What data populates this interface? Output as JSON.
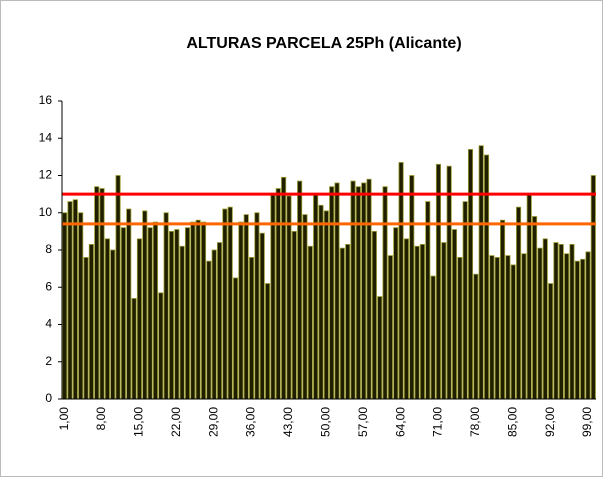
{
  "chart_data": {
    "type": "bar",
    "title": "ALTURAS PARCELA 25Ph (Alicante)",
    "categories": [
      "1,00",
      null,
      null,
      null,
      null,
      null,
      null,
      "8,00",
      null,
      null,
      null,
      null,
      null,
      null,
      "15,00",
      null,
      null,
      null,
      null,
      null,
      null,
      "22,00",
      null,
      null,
      null,
      null,
      null,
      null,
      "29,00",
      null,
      null,
      null,
      null,
      null,
      null,
      "36,00",
      null,
      null,
      null,
      null,
      null,
      null,
      "43,00",
      null,
      null,
      null,
      null,
      null,
      null,
      "50,00",
      null,
      null,
      null,
      null,
      null,
      null,
      "57,00",
      null,
      null,
      null,
      null,
      null,
      null,
      "64,00",
      null,
      null,
      null,
      null,
      null,
      null,
      "71,00",
      null,
      null,
      null,
      null,
      null,
      null,
      "78,00",
      null,
      null,
      null,
      null,
      null,
      null,
      "85,00",
      null,
      null,
      null,
      null,
      null,
      null,
      "92,00",
      null,
      null,
      null,
      null,
      null,
      null,
      "99,00",
      null
    ],
    "values": [
      10.0,
      10.6,
      10.7,
      10.0,
      7.6,
      8.3,
      11.4,
      11.3,
      8.6,
      8.0,
      12.0,
      9.2,
      10.2,
      5.4,
      8.6,
      10.1,
      9.2,
      9.5,
      5.7,
      10.0,
      9.0,
      9.1,
      8.2,
      9.2,
      9.5,
      9.6,
      9.5,
      7.4,
      8.0,
      8.4,
      10.2,
      10.3,
      6.5,
      9.5,
      9.9,
      7.6,
      10.0,
      8.9,
      6.2,
      11.0,
      11.3,
      11.9,
      10.9,
      9.0,
      11.7,
      9.9,
      8.2,
      11.0,
      10.4,
      10.1,
      11.4,
      11.6,
      8.1,
      8.3,
      11.7,
      11.4,
      11.6,
      11.8,
      9.0,
      5.5,
      11.4,
      7.7,
      9.2,
      12.7,
      8.6,
      12.0,
      8.2,
      8.3,
      10.6,
      6.6,
      12.6,
      8.4,
      12.5,
      9.1,
      7.6,
      10.6,
      13.4,
      6.7,
      13.6,
      13.1,
      7.7,
      7.6,
      9.6,
      7.7,
      7.2,
      10.3,
      7.8,
      11.0,
      9.8,
      8.1,
      8.6,
      6.2,
      8.4,
      8.3,
      7.8,
      8.3,
      7.4,
      7.5,
      7.9,
      12.0
    ],
    "color": "#1f1f00",
    "edge_color": "#9a9a30",
    "ylim": [
      0,
      16
    ],
    "yticks": [
      0,
      2,
      4,
      6,
      8,
      10,
      12,
      14,
      16
    ],
    "reference_lines": [
      {
        "value": 11.0,
        "color": "#ff0000"
      },
      {
        "value": 9.4,
        "color": "#ff6600"
      }
    ]
  }
}
